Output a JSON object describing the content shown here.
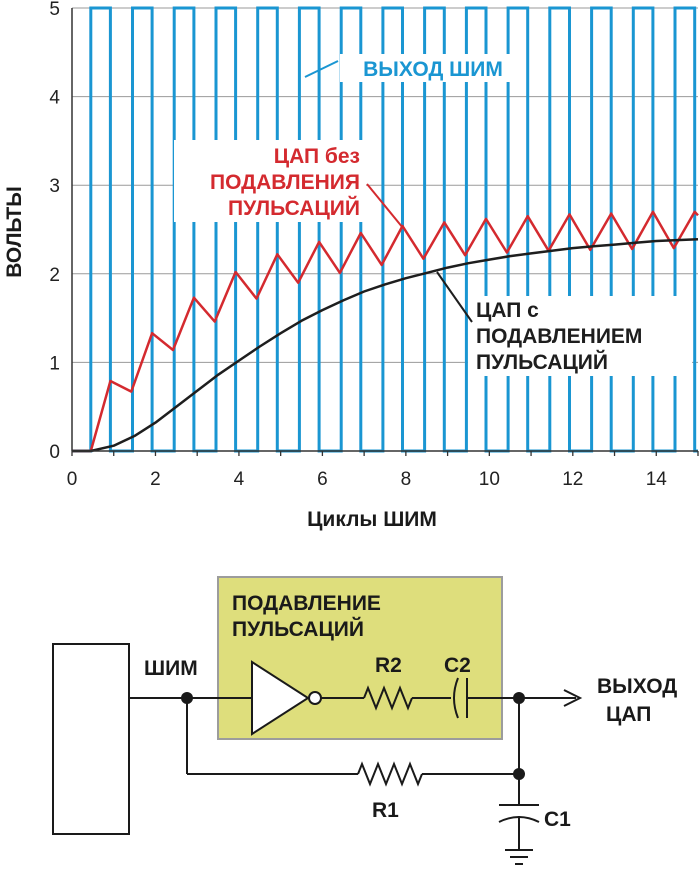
{
  "chart_data": {
    "type": "line",
    "xlabel": "Циклы ШИМ",
    "ylabel": "ВОЛЬТЫ",
    "xlim": [
      0,
      15
    ],
    "ylim": [
      0,
      5
    ],
    "x_ticks": [
      0,
      2,
      4,
      6,
      8,
      10,
      12,
      14
    ],
    "y_ticks": [
      0,
      1,
      2,
      3,
      4,
      5
    ],
    "grid": true,
    "series": [
      {
        "name": "ВЫХОД ШИМ",
        "color": "#1a96d2",
        "kind": "square-wave",
        "period": 1,
        "duty": 0.47,
        "low": 0,
        "high": 5,
        "first_rise": 0.45
      },
      {
        "name": "ЦАП без ПОДАВЛЕНИЯ ПУЛЬСАЦИЙ",
        "color": "#d42a2f",
        "x": [
          0,
          0.45,
          0.92,
          1.42,
          1.92,
          2.42,
          2.92,
          3.42,
          3.92,
          4.42,
          4.92,
          5.42,
          5.92,
          6.42,
          6.92,
          7.42,
          7.92,
          8.42,
          8.92,
          9.42,
          9.92,
          10.42,
          10.92,
          11.42,
          11.92,
          12.42,
          12.92,
          13.42,
          13.92,
          14.42,
          14.92,
          15.0
        ],
        "y": [
          0,
          0,
          0.79,
          0.67,
          1.33,
          1.14,
          1.73,
          1.46,
          2.02,
          1.72,
          2.22,
          1.9,
          2.36,
          2.01,
          2.46,
          2.1,
          2.54,
          2.17,
          2.58,
          2.21,
          2.62,
          2.24,
          2.65,
          2.26,
          2.67,
          2.27,
          2.68,
          2.28,
          2.7,
          2.29,
          2.7,
          2.66
        ]
      },
      {
        "name": "ЦАП с ПОДАВЛЕНИЕМ ПУЛЬСАЦИЙ",
        "color": "#1e1e1e",
        "x": [
          0,
          0.45,
          1,
          1.5,
          2,
          2.5,
          3,
          3.5,
          4,
          4.5,
          5,
          5.5,
          6,
          6.5,
          7,
          7.5,
          8,
          8.5,
          9,
          9.5,
          10,
          10.5,
          11,
          11.5,
          12,
          12.5,
          13,
          13.5,
          14,
          14.5,
          15
        ],
        "y": [
          0,
          0,
          0.06,
          0.17,
          0.32,
          0.5,
          0.68,
          0.86,
          1.02,
          1.18,
          1.33,
          1.47,
          1.59,
          1.7,
          1.8,
          1.88,
          1.95,
          2.01,
          2.07,
          2.12,
          2.16,
          2.2,
          2.23,
          2.26,
          2.29,
          2.31,
          2.33,
          2.35,
          2.37,
          2.38,
          2.39
        ]
      }
    ],
    "annotations": {
      "pwm_label": "ВЫХОД ШИМ",
      "dac_raw_lines": [
        "ЦАП без",
        "ПОДАВЛЕНИЯ",
        "ПУЛЬСАЦИЙ"
      ],
      "dac_filtered_lines": [
        "ЦАП с",
        "ПОДАВЛЕНИЕМ",
        "ПУЛЬСАЦИЙ"
      ]
    }
  },
  "circuit": {
    "block_title_lines": [
      "ПОДАВЛЕНИЕ",
      "ПУЛЬСАЦИЙ"
    ],
    "block_fill": "#dede7c",
    "pwm_label": "ШИМ",
    "r1_label": "R1",
    "r2_label": "R2",
    "c1_label": "C1",
    "c2_label": "C2",
    "output_lines": [
      "ВЫХОД",
      "ЦАП"
    ]
  }
}
